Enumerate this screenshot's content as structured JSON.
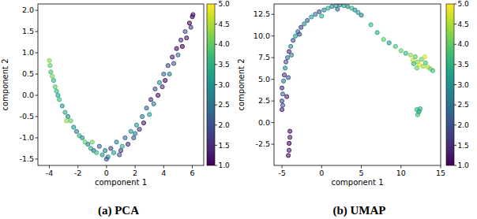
{
  "chart_data": [
    {
      "type": "scatter",
      "title": "(a) PCA",
      "x_label": "component 1",
      "y_label": "component 2",
      "xlim": [
        -4.8,
        6.8
      ],
      "ylim": [
        -1.65,
        2.15
      ],
      "xticks": [
        -4,
        -2,
        0,
        2,
        4,
        6
      ],
      "yticks": [
        {
          "value": -1.5,
          "label": "-1.5"
        },
        {
          "value": -1,
          "label": "-1.0"
        },
        {
          "value": -0.5,
          "label": "-0.5"
        },
        {
          "value": 0,
          "label": "0.0"
        },
        {
          "value": 0.5,
          "label": "0.5"
        },
        {
          "value": 1,
          "label": "1.0"
        },
        {
          "value": 1.5,
          "label": "1.5"
        },
        {
          "value": 2,
          "label": "2.0"
        }
      ],
      "color_range": [
        1,
        5
      ],
      "color_ticks": [
        {
          "value": 1,
          "label": "1.0"
        },
        {
          "value": 1.5,
          "label": "1.5"
        },
        {
          "value": 2,
          "label": "2.0"
        },
        {
          "value": 2.5,
          "label": "2.5"
        },
        {
          "value": 3,
          "label": "3.0"
        },
        {
          "value": 3.5,
          "label": "3.5"
        },
        {
          "value": 4,
          "label": "4.0"
        },
        {
          "value": 4.5,
          "label": "4.5"
        },
        {
          "value": 5,
          "label": "5.0"
        }
      ],
      "series": [
        {
          "marker": "circle",
          "x": [
            -4.0,
            -3.95,
            -3.9,
            -3.8,
            -3.7,
            -3.6,
            -3.5,
            -3.4,
            -3.3,
            -3.1,
            -2.9,
            -2.7,
            -2.5,
            -2.3,
            -2.1,
            -1.9,
            -1.7,
            -1.5,
            -1.3,
            -1.1,
            -0.9,
            -0.7,
            -0.5,
            -0.3,
            -0.1,
            0.1,
            0.3,
            0.5,
            0.7,
            0.9,
            1.1,
            1.3,
            1.5,
            1.7,
            1.9,
            2.1,
            2.3,
            2.5,
            2.6,
            2.8,
            3.0,
            3.1,
            3.3,
            3.4,
            3.6,
            3.7,
            3.9,
            4.0,
            4.1,
            4.3,
            4.4,
            4.6,
            4.7,
            4.9,
            5.0,
            5.2,
            5.3,
            5.5,
            5.6,
            5.8,
            5.9,
            6.0,
            6.05,
            -2.8,
            -1.0,
            0.0,
            1.0,
            2.0
          ],
          "values": [
            0.82,
            0.7,
            0.55,
            0.45,
            0.35,
            0.2,
            0.1,
            0.0,
            -0.1,
            -0.25,
            -0.4,
            -0.5,
            -0.6,
            -0.75,
            -0.85,
            -0.95,
            -1.0,
            -1.1,
            -1.15,
            -1.25,
            -1.3,
            -1.35,
            -1.2,
            -1.4,
            -1.3,
            -1.45,
            -1.25,
            -1.35,
            -1.1,
            -1.4,
            -1.2,
            -1.0,
            -1.15,
            -0.85,
            -1.0,
            -0.7,
            -0.8,
            -0.5,
            -0.65,
            -0.3,
            -0.45,
            -0.1,
            -0.2,
            0.15,
            0.0,
            0.3,
            0.2,
            0.5,
            0.35,
            0.7,
            0.5,
            0.9,
            0.75,
            1.1,
            0.95,
            1.3,
            1.15,
            1.5,
            1.35,
            1.7,
            1.6,
            1.85,
            1.9,
            -0.6,
            -1.1,
            -1.5,
            -1.3,
            -0.9
          ],
          "color_values": [
            4.2,
            4.0,
            3.8,
            4.1,
            3.5,
            3.9,
            3.6,
            3.2,
            3.7,
            3.0,
            3.4,
            2.8,
            3.9,
            3.1,
            2.6,
            3.5,
            2.9,
            4.0,
            2.7,
            3.3,
            2.4,
            3.6,
            2.2,
            3.0,
            2.5,
            2.8,
            1.8,
            3.2,
            2.6,
            2.0,
            3.4,
            2.3,
            1.5,
            2.9,
            2.1,
            3.0,
            1.6,
            2.6,
            1.3,
            2.2,
            3.1,
            1.4,
            2.5,
            1.9,
            1.2,
            2.8,
            1.5,
            2.3,
            1.1,
            1.8,
            2.6,
            1.3,
            2.0,
            1.1,
            2.4,
            1.5,
            1.0,
            1.9,
            1.2,
            1.0,
            1.6,
            1.0,
            1.3,
            4.3,
            4.1,
            2.0,
            1.7,
            2.5
          ]
        }
      ]
    },
    {
      "type": "scatter",
      "title": "(b) UMAP",
      "x_label": "component 1",
      "y_label": "component 2",
      "xlim": [
        -6,
        15
      ],
      "ylim": [
        -4.95,
        13.7
      ],
      "xticks": [
        -5,
        0,
        5,
        10,
        15
      ],
      "yticks": [
        {
          "value": -2.5,
          "label": "-2.5"
        },
        {
          "value": 0,
          "label": "0.0"
        },
        {
          "value": 2.5,
          "label": "2.5"
        },
        {
          "value": 5,
          "label": "5.0"
        },
        {
          "value": 7.5,
          "label": "7.5"
        },
        {
          "value": 10,
          "label": "10.0"
        },
        {
          "value": 12.5,
          "label": "12.5"
        }
      ],
      "color_range": [
        1,
        5
      ],
      "color_ticks": [
        {
          "value": 1,
          "label": "1.0"
        },
        {
          "value": 1.5,
          "label": "1.5"
        },
        {
          "value": 2,
          "label": "2.0"
        },
        {
          "value": 2.5,
          "label": "2.5"
        },
        {
          "value": 3,
          "label": "3.0"
        },
        {
          "value": 3.5,
          "label": "3.5"
        },
        {
          "value": 4,
          "label": "4.0"
        },
        {
          "value": 4.5,
          "label": "4.5"
        },
        {
          "value": 5,
          "label": "5.0"
        }
      ],
      "series": [
        {
          "marker": "circle",
          "x": [
            -5.0,
            -4.9,
            -5.0,
            -4.8,
            -4.7,
            -4.6,
            -4.5,
            -4.3,
            -4.1,
            -3.9,
            -3.6,
            -3.3,
            -3.0,
            -2.6,
            -2.2,
            -1.8,
            -1.3,
            -0.8,
            -0.3,
            0.3,
            0.8,
            1.3,
            1.8,
            2.3,
            2.8,
            3.3,
            3.8,
            4.2,
            4.6,
            5.0,
            -4.4,
            -4.2,
            -3.8,
            -2.8,
            0.0,
            2.0,
            6.2,
            7.0,
            7.8,
            8.5,
            9.3,
            10.0,
            10.6,
            11.2,
            11.5,
            11.8,
            12.1,
            12.3,
            12.6,
            12.8,
            13.1,
            13.4,
            13.7,
            14.0,
            12.0,
            11.6,
            13.0,
            12.0,
            12.2,
            12.4,
            12.1,
            12.3,
            -4.0,
            -4.0,
            -4.1,
            -4.1,
            -4.2,
            -5.0,
            -4.9
          ],
          "values": [
            2.5,
            3.3,
            4.0,
            4.8,
            5.5,
            6.3,
            7.0,
            7.5,
            8.2,
            8.8,
            9.5,
            10.0,
            10.5,
            11.0,
            11.4,
            11.8,
            12.2,
            12.5,
            12.8,
            13.0,
            13.2,
            13.4,
            13.5,
            13.6,
            13.5,
            13.4,
            13.2,
            13.0,
            12.7,
            12.4,
            3.0,
            5.2,
            7.8,
            10.2,
            12.3,
            13.1,
            11.3,
            10.4,
            9.6,
            9.2,
            8.8,
            8.3,
            8.0,
            7.8,
            7.2,
            7.6,
            7.0,
            6.7,
            7.3,
            6.5,
            6.9,
            6.4,
            6.2,
            6.0,
            6.3,
            6.8,
            7.6,
            1.5,
            1.2,
            1.6,
            0.9,
            1.3,
            -1.0,
            -1.7,
            -2.4,
            -3.2,
            -3.8,
            1.5,
            2.0
          ],
          "color_values": [
            1.8,
            2.2,
            1.5,
            2.5,
            1.6,
            2.8,
            1.9,
            2.3,
            1.4,
            2.7,
            2.0,
            3.0,
            2.4,
            1.7,
            2.9,
            2.2,
            3.1,
            2.5,
            2.0,
            2.8,
            3.3,
            2.6,
            3.0,
            2.4,
            3.2,
            2.7,
            3.5,
            2.9,
            3.1,
            2.6,
            1.3,
            2.1,
            2.6,
            1.9,
            3.4,
            2.2,
            3.6,
            3.3,
            3.9,
            3.0,
            3.7,
            4.0,
            3.5,
            4.3,
            4.6,
            3.9,
            4.2,
            4.8,
            4.0,
            4.4,
            3.8,
            4.5,
            4.1,
            3.7,
            4.0,
            3.6,
            4.7,
            3.6,
            3.8,
            3.4,
            3.7,
            3.5,
            1.1,
            1.3,
            1.0,
            1.2,
            1.1,
            1.4,
            2.0
          ]
        }
      ]
    }
  ]
}
